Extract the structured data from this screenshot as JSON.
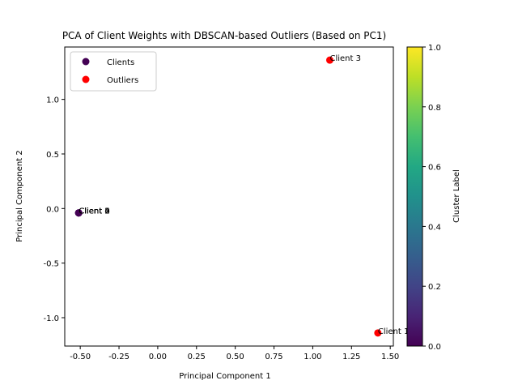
{
  "chart_data": {
    "type": "scatter",
    "title": "PCA of Client Weights with DBSCAN-based Outliers (Based on PC1)",
    "xlabel": "Principal Component 1",
    "ylabel": "Principal Component 2",
    "xlim": [
      -0.6,
      1.52
    ],
    "ylim": [
      -1.26,
      1.48
    ],
    "xticks": [
      "-0.50",
      "-0.25",
      "0.00",
      "0.25",
      "0.50",
      "0.75",
      "1.00",
      "1.25",
      "1.50"
    ],
    "xtick_values": [
      -0.5,
      -0.25,
      0,
      0.25,
      0.5,
      0.75,
      1.0,
      1.25,
      1.5
    ],
    "yticks": [
      "1.0",
      "0.5",
      "0.0",
      "-0.5",
      "-1.0"
    ],
    "ytick_values": [
      1.0,
      0.5,
      0.0,
      -0.5,
      -1.0
    ],
    "grid": false,
    "legend_position": "top-left",
    "series": [
      {
        "name": "Clients",
        "color": "#440154",
        "points": [
          {
            "x": -0.51,
            "y": -0.04
          },
          {
            "x": -0.51,
            "y": -0.04
          },
          {
            "x": -0.51,
            "y": -0.04
          },
          {
            "x": -0.51,
            "y": -0.04
          }
        ]
      },
      {
        "name": "Outliers",
        "color": "#ff0000",
        "points": [
          {
            "x": 1.11,
            "y": 1.36
          },
          {
            "x": 1.42,
            "y": -1.14
          }
        ]
      }
    ],
    "annotations": [
      {
        "text": "Client 0",
        "x": -0.51,
        "y": -0.04
      },
      {
        "text": "Client 2",
        "x": -0.51,
        "y": -0.04
      },
      {
        "text": "Client 4",
        "x": -0.51,
        "y": -0.04
      },
      {
        "text": "Client 5",
        "x": -0.51,
        "y": -0.04
      },
      {
        "text": "Client 3",
        "x": 1.11,
        "y": 1.36
      },
      {
        "text": "Client 1",
        "x": 1.42,
        "y": -1.14
      }
    ],
    "colorbar": {
      "label": "Cluster Label",
      "colormap": "viridis",
      "range": [
        0.0,
        1.0
      ],
      "ticks": [
        "0.0",
        "0.2",
        "0.4",
        "0.6",
        "0.8",
        "1.0"
      ],
      "tick_values": [
        0.0,
        0.2,
        0.4,
        0.6,
        0.8,
        1.0
      ]
    }
  }
}
